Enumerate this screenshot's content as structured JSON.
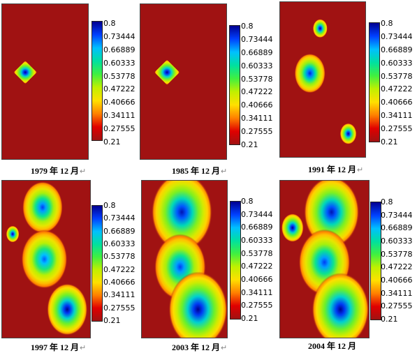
{
  "chart_data": [
    {
      "type": "heatmap",
      "caption": "1979 年 12 月",
      "colorbar": {
        "ticks": [
          "0.8",
          "0.73444",
          "0.66889",
          "0.60333",
          "0.53778",
          "0.47222",
          "0.40666",
          "0.34111",
          "0.27555",
          "0.21"
        ],
        "min": 0.21,
        "max": 0.8
      },
      "zones": [
        {
          "cx": 0.27,
          "cy": 0.44,
          "r": 0.11,
          "peak": 0.8
        }
      ]
    },
    {
      "type": "heatmap",
      "caption": "1985 年 12 月",
      "colorbar": {
        "ticks": [
          "0.8",
          "0.73444",
          "0.66889",
          "0.60333",
          "0.53778",
          "0.47222",
          "0.40666",
          "0.34111",
          "0.27555",
          "0.21"
        ],
        "min": 0.21,
        "max": 0.8
      },
      "zones": [
        {
          "cx": 0.31,
          "cy": 0.44,
          "r": 0.12,
          "peak": 0.8
        }
      ]
    },
    {
      "type": "heatmap",
      "caption": "1991 年 12 月",
      "colorbar": {
        "ticks": [
          "0.8",
          "0.73444",
          "0.66889",
          "0.60333",
          "0.53778",
          "0.47222",
          "0.40666",
          "0.34111",
          "0.27555",
          "0.21"
        ],
        "min": 0.21,
        "max": 0.8
      },
      "zones": [
        {
          "cx": 0.47,
          "cy": 0.17,
          "r": 0.08,
          "peak": 0.8
        },
        {
          "cx": 0.35,
          "cy": 0.46,
          "r": 0.17,
          "peak": 0.76
        },
        {
          "cx": 0.8,
          "cy": 0.85,
          "r": 0.09,
          "peak": 0.8
        }
      ]
    },
    {
      "type": "heatmap",
      "caption": "1997 年 12 月",
      "colorbar": {
        "ticks": [
          "0.8",
          "0.73444",
          "0.66889",
          "0.60333",
          "0.53778",
          "0.47222",
          "0.40666",
          "0.34111",
          "0.27555",
          "0.21"
        ],
        "min": 0.21,
        "max": 0.8
      },
      "zones": [
        {
          "cx": 0.46,
          "cy": 0.17,
          "r": 0.22,
          "peak": 0.74
        },
        {
          "cx": 0.12,
          "cy": 0.34,
          "r": 0.07,
          "peak": 0.8
        },
        {
          "cx": 0.48,
          "cy": 0.5,
          "r": 0.25,
          "peak": 0.72
        },
        {
          "cx": 0.74,
          "cy": 0.82,
          "r": 0.22,
          "peak": 0.8
        }
      ]
    },
    {
      "type": "heatmap",
      "caption": "2003 年 12 月",
      "colorbar": {
        "ticks": [
          "0.8",
          "0.73444",
          "0.66889",
          "0.60333",
          "0.53778",
          "0.47222",
          "0.40666",
          "0.34111",
          "0.27555",
          "0.21"
        ],
        "min": 0.21,
        "max": 0.8
      },
      "zones": [
        {
          "cx": 0.47,
          "cy": 0.2,
          "r": 0.33,
          "peak": 0.78
        },
        {
          "cx": 0.45,
          "cy": 0.55,
          "r": 0.28,
          "peak": 0.74
        },
        {
          "cx": 0.66,
          "cy": 0.82,
          "r": 0.32,
          "peak": 0.8
        }
      ]
    },
    {
      "type": "heatmap",
      "caption": "2004 年 12 月",
      "colorbar": {
        "ticks": [
          "0.8",
          "0.73444",
          "0.66889",
          "0.60333",
          "0.53778",
          "0.47222",
          "0.40666",
          "0.34111",
          "0.27555",
          "0.21"
        ],
        "min": 0.21,
        "max": 0.8
      },
      "zones": [
        {
          "cx": 0.58,
          "cy": 0.2,
          "r": 0.3,
          "peak": 0.78
        },
        {
          "cx": 0.14,
          "cy": 0.3,
          "r": 0.12,
          "peak": 0.8
        },
        {
          "cx": 0.5,
          "cy": 0.52,
          "r": 0.28,
          "peak": 0.74
        },
        {
          "cx": 0.68,
          "cy": 0.82,
          "r": 0.31,
          "peak": 0.8
        }
      ]
    }
  ],
  "colors": {
    "background_field": "#a01212",
    "colormap": [
      "#000090",
      "#0040ff",
      "#00c0ff",
      "#00e0a0",
      "#40f040",
      "#c0f000",
      "#ffe000",
      "#ff8000",
      "#e00000",
      "#a01212"
    ]
  }
}
